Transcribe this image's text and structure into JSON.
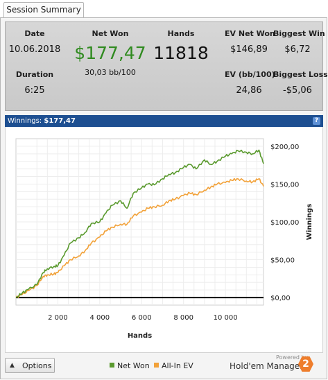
{
  "tab": {
    "label": "Session Summary"
  },
  "summary": {
    "date_label": "Date",
    "date_value": "10.06.2018",
    "duration_label": "Duration",
    "duration_value": "6:25",
    "netwon_label": "Net Won",
    "netwon_value": "$177,47",
    "netwon_bb": "30,03 bb/100",
    "hands_label": "Hands",
    "hands_value": "11818",
    "evnet_label": "EV Net Won",
    "evnet_value": "$146,89",
    "evbb_label": "EV (bb/100)",
    "evbb_value": "24,86",
    "bigwin_label": "Biggest Win",
    "bigwin_value": "$6,72",
    "bigloss_label": "Biggest Loss",
    "bigloss_value": "-$5,06"
  },
  "winnings_bar": {
    "label": "Winnings:",
    "value": "$177,47",
    "help_icon": "?"
  },
  "colors": {
    "net_won": "#5a9a2e",
    "all_in_ev": "#f2a23a",
    "header_blue": "#1d4f91",
    "big_number_green": "#2f8a1f"
  },
  "chart_data": {
    "type": "line",
    "xlabel": "Hands",
    "ylabel": "Winnings",
    "xlim": [
      0,
      11818
    ],
    "ylim": [
      -10,
      210
    ],
    "x_ticks": [
      2000,
      4000,
      6000,
      8000,
      10000
    ],
    "x_tick_labels": [
      "2 000",
      "4 000",
      "6 000",
      "8 000",
      "10 000"
    ],
    "y_ticks": [
      0,
      50,
      100,
      150,
      200
    ],
    "y_tick_labels": [
      "$0,00",
      "$50,00",
      "$100,00",
      "$150,00",
      "$200,00"
    ],
    "y_axis_side": "right",
    "grid": true,
    "legend_position": "bottom",
    "series": [
      {
        "name": "Net Won",
        "color": "#5a9a2e",
        "x": [
          0,
          300,
          600,
          1000,
          1300,
          1500,
          1800,
          2000,
          2300,
          2600,
          3000,
          3300,
          3600,
          4000,
          4300,
          4600,
          5000,
          5300,
          5600,
          6000,
          6300,
          6600,
          7000,
          7300,
          7600,
          8000,
          8300,
          8600,
          9000,
          9300,
          9600,
          10000,
          10300,
          10600,
          11000,
          11300,
          11600,
          11818
        ],
        "y": [
          0,
          6,
          11,
          17,
          33,
          38,
          41,
          42,
          56,
          72,
          79,
          86,
          98,
          100,
          112,
          122,
          128,
          118,
          138,
          145,
          150,
          149,
          157,
          163,
          165,
          172,
          176,
          170,
          182,
          176,
          180,
          187,
          190,
          194,
          192,
          190,
          195,
          177
        ]
      },
      {
        "name": "All-In EV",
        "color": "#f2a23a",
        "x": [
          0,
          300,
          600,
          1000,
          1300,
          1500,
          1800,
          2000,
          2300,
          2600,
          3000,
          3300,
          3600,
          4000,
          4300,
          4600,
          5000,
          5300,
          5600,
          6000,
          6300,
          6600,
          7000,
          7300,
          7600,
          8000,
          8300,
          8600,
          9000,
          9300,
          9600,
          10000,
          10300,
          10600,
          11000,
          11300,
          11600,
          11818
        ],
        "y": [
          0,
          4,
          9,
          16,
          28,
          30,
          31,
          33,
          42,
          50,
          55,
          62,
          72,
          80,
          88,
          93,
          97,
          97,
          108,
          113,
          118,
          120,
          122,
          128,
          130,
          135,
          138,
          136,
          142,
          146,
          150,
          152,
          155,
          157,
          154,
          153,
          157,
          147
        ]
      }
    ]
  },
  "footer": {
    "options_label": "Options",
    "legend_net_won": "Net Won",
    "legend_all_in_ev": "All-In EV",
    "powered_by": "Powered by",
    "brand_name": "Hold'em Manager",
    "brand_logo_text": "2"
  }
}
